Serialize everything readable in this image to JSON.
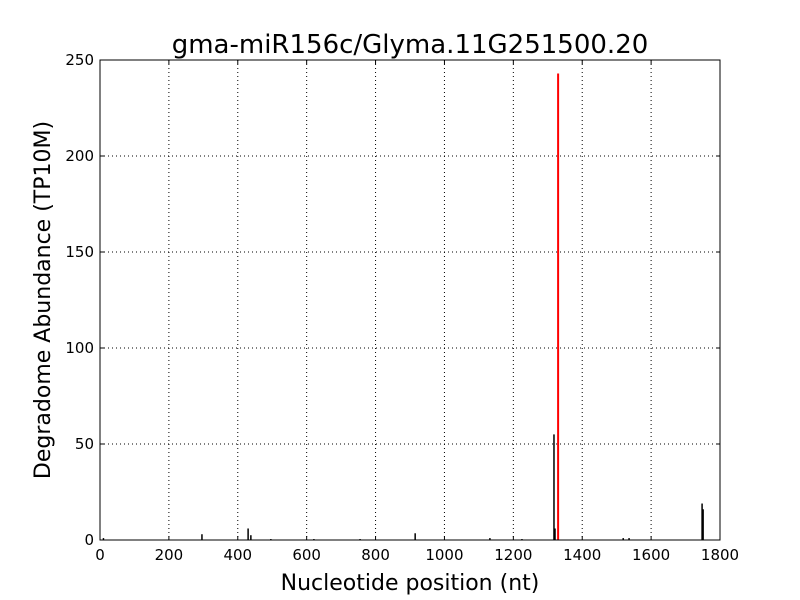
{
  "chart_data": {
    "type": "bar",
    "title": "gma-miR156c/Glyma.11G251500.20",
    "xlabel": "Nucleotide position (nt)",
    "ylabel": "Degradome Abundance (TP10M)",
    "xlim": [
      0,
      1800
    ],
    "ylim": [
      0,
      250
    ],
    "xticks": [
      0,
      200,
      400,
      600,
      800,
      1000,
      1200,
      1400,
      1600,
      1800
    ],
    "yticks": [
      0,
      50,
      100,
      150,
      200,
      250
    ],
    "grid": true,
    "series": [
      {
        "color": "#000000",
        "points": [
          {
            "x": 10,
            "y": 1
          },
          {
            "x": 296,
            "y": 3
          },
          {
            "x": 430,
            "y": 6
          },
          {
            "x": 438,
            "y": 2.5
          },
          {
            "x": 496,
            "y": 0.5
          },
          {
            "x": 621,
            "y": 0.5
          },
          {
            "x": 755,
            "y": 0.5
          },
          {
            "x": 915,
            "y": 3.5
          },
          {
            "x": 1132,
            "y": 1
          },
          {
            "x": 1225,
            "y": 0.5
          },
          {
            "x": 1318,
            "y": 55
          },
          {
            "x": 1321,
            "y": 6
          },
          {
            "x": 1519,
            "y": 1
          },
          {
            "x": 1536,
            "y": 1
          },
          {
            "x": 1748,
            "y": 19
          },
          {
            "x": 1751,
            "y": 16
          }
        ]
      },
      {
        "color": "#ff0000",
        "points": [
          {
            "x": 1330,
            "y": 243
          }
        ]
      }
    ]
  }
}
